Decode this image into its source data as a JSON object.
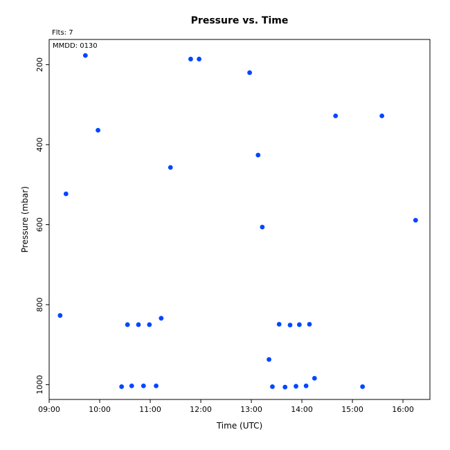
{
  "chart_data": {
    "type": "scatter",
    "title": "Pressure  vs. Time",
    "annotations": {
      "flights": "Flts: 7",
      "date": "MMDD: 0130"
    },
    "xlabel": "Time (UTC)",
    "ylabel": "Pressure (mbar)",
    "xlim": [
      "09:00",
      "16:32"
    ],
    "ylim": [
      1037,
      137
    ],
    "y_inverted": true,
    "x_ticks": [
      "09:00",
      "10:00",
      "11:00",
      "12:00",
      "13:00",
      "14:00",
      "15:00",
      "16:00"
    ],
    "y_ticks": [
      200,
      400,
      600,
      800,
      1000
    ],
    "grid": false,
    "marker_color": "#0047ff",
    "points": [
      {
        "x": "09:13",
        "y": 827
      },
      {
        "x": "09:20",
        "y": 523
      },
      {
        "x": "09:43",
        "y": 177
      },
      {
        "x": "09:58",
        "y": 364
      },
      {
        "x": "10:26",
        "y": 1005
      },
      {
        "x": "10:33",
        "y": 850
      },
      {
        "x": "10:38",
        "y": 1003
      },
      {
        "x": "10:46",
        "y": 850
      },
      {
        "x": "10:52",
        "y": 1003
      },
      {
        "x": "10:59",
        "y": 850
      },
      {
        "x": "11:07",
        "y": 1003
      },
      {
        "x": "11:13",
        "y": 834
      },
      {
        "x": "11:24",
        "y": 457
      },
      {
        "x": "11:48",
        "y": 186
      },
      {
        "x": "11:58",
        "y": 186
      },
      {
        "x": "12:58",
        "y": 220
      },
      {
        "x": "13:08",
        "y": 426
      },
      {
        "x": "13:13",
        "y": 606
      },
      {
        "x": "13:21",
        "y": 937
      },
      {
        "x": "13:25",
        "y": 1005
      },
      {
        "x": "13:33",
        "y": 849
      },
      {
        "x": "13:40",
        "y": 1006
      },
      {
        "x": "13:46",
        "y": 851
      },
      {
        "x": "13:53",
        "y": 1004
      },
      {
        "x": "13:57",
        "y": 850
      },
      {
        "x": "14:05",
        "y": 1003
      },
      {
        "x": "14:09",
        "y": 849
      },
      {
        "x": "14:15",
        "y": 984
      },
      {
        "x": "14:40",
        "y": 328
      },
      {
        "x": "15:12",
        "y": 1005
      },
      {
        "x": "15:35",
        "y": 328
      },
      {
        "x": "16:15",
        "y": 589
      }
    ]
  }
}
